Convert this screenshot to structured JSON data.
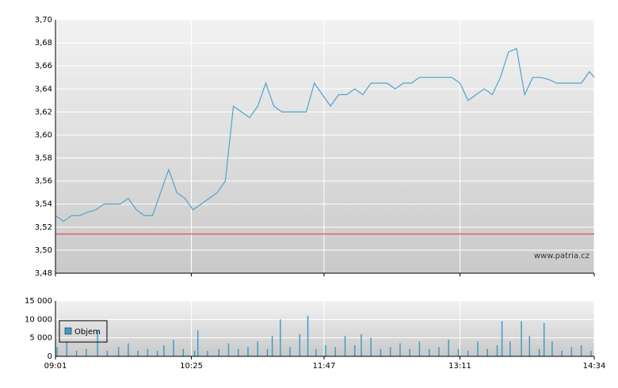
{
  "chart_data": [
    {
      "type": "line",
      "x": [
        "09:01",
        "09:06",
        "09:11",
        "09:16",
        "09:21",
        "09:26",
        "09:31",
        "09:36",
        "09:41",
        "09:46",
        "09:51",
        "09:56",
        "10:01",
        "10:06",
        "10:11",
        "10:16",
        "10:21",
        "10:26",
        "10:31",
        "10:36",
        "10:41",
        "10:46",
        "10:51",
        "10:56",
        "11:01",
        "11:06",
        "11:11",
        "11:16",
        "11:21",
        "11:26",
        "11:31",
        "11:36",
        "11:41",
        "11:46",
        "11:51",
        "11:56",
        "12:01",
        "12:06",
        "12:11",
        "12:16",
        "12:21",
        "12:26",
        "12:31",
        "12:36",
        "12:41",
        "12:46",
        "12:51",
        "12:56",
        "13:01",
        "13:06",
        "13:11",
        "13:16",
        "13:21",
        "13:26",
        "13:31",
        "13:36",
        "13:41",
        "13:46",
        "13:51",
        "13:56",
        "14:01",
        "14:06",
        "14:11",
        "14:16",
        "14:21",
        "14:26",
        "14:31",
        "14:34"
      ],
      "series": [
        {
          "color": "#4aa6cc",
          "values": [
            3.53,
            3.525,
            3.53,
            3.53,
            3.533,
            3.535,
            3.54,
            3.54,
            3.54,
            3.545,
            3.535,
            3.53,
            3.53,
            3.55,
            3.57,
            3.55,
            3.545,
            3.535,
            3.54,
            3.545,
            3.55,
            3.56,
            3.625,
            3.62,
            3.615,
            3.625,
            3.645,
            3.625,
            3.62,
            3.62,
            3.62,
            3.62,
            3.645,
            3.635,
            3.625,
            3.635,
            3.635,
            3.64,
            3.635,
            3.645,
            3.645,
            3.645,
            3.64,
            3.645,
            3.645,
            3.65,
            3.65,
            3.65,
            3.65,
            3.65,
            3.645,
            3.63,
            3.635,
            3.64,
            3.635,
            3.65,
            3.672,
            3.675,
            3.635,
            3.65,
            3.65,
            3.648,
            3.645,
            3.645,
            3.645,
            3.645,
            3.655,
            3.65
          ]
        }
      ],
      "reference_line": {
        "value": 3.514,
        "color": "#e06060"
      },
      "annotation": "www.patria.cz",
      "xlim": [
        "09:01",
        "14:34"
      ],
      "xticks": [
        "09:01",
        "10:25",
        "11:47",
        "13:11",
        "14:34"
      ],
      "ylim": [
        3.48,
        3.7
      ],
      "yticks": [
        {
          "value": 3.48,
          "label": "3,48"
        },
        {
          "value": 3.5,
          "label": "3,50"
        },
        {
          "value": 3.52,
          "label": "3,52"
        },
        {
          "value": 3.54,
          "label": "3,54"
        },
        {
          "value": 3.56,
          "label": "3,56"
        },
        {
          "value": 3.58,
          "label": "3,58"
        },
        {
          "value": 3.6,
          "label": "3,60"
        },
        {
          "value": 3.62,
          "label": "3,62"
        },
        {
          "value": 3.64,
          "label": "3,64"
        },
        {
          "value": 3.66,
          "label": "3,66"
        },
        {
          "value": 3.68,
          "label": "3,68"
        },
        {
          "value": 3.7,
          "label": "3,70"
        }
      ],
      "grid": true
    },
    {
      "type": "bar",
      "x": [
        "09:02",
        "09:08",
        "09:14",
        "09:20",
        "09:27",
        "09:33",
        "09:40",
        "09:46",
        "09:52",
        "09:58",
        "10:04",
        "10:08",
        "10:14",
        "10:20",
        "10:27",
        "10:29",
        "10:35",
        "10:42",
        "10:48",
        "10:54",
        "11:00",
        "11:06",
        "11:12",
        "11:15",
        "11:20",
        "11:26",
        "11:32",
        "11:37",
        "11:42",
        "11:48",
        "11:54",
        "12:00",
        "12:06",
        "12:10",
        "12:16",
        "12:22",
        "12:28",
        "12:34",
        "12:40",
        "12:46",
        "12:52",
        "12:58",
        "13:04",
        "13:10",
        "13:16",
        "13:22",
        "13:28",
        "13:34",
        "13:37",
        "13:42",
        "13:49",
        "13:54",
        "14:00",
        "14:03",
        "14:08",
        "14:14",
        "14:20",
        "14:26",
        "14:32"
      ],
      "series": [
        {
          "name": "Objem",
          "color": "#3a9fc8",
          "values": [
            2500,
            4000,
            1500,
            2000,
            7000,
            1500,
            2500,
            3500,
            1500,
            2000,
            1500,
            3000,
            4500,
            2000,
            1500,
            7000,
            1500,
            2000,
            3500,
            2000,
            2500,
            4000,
            2000,
            5500,
            10000,
            2500,
            6000,
            11000,
            2000,
            3000,
            2500,
            5500,
            3000,
            6000,
            5000,
            2000,
            2500,
            3500,
            2000,
            4000,
            2000,
            2500,
            4500,
            2000,
            1500,
            4000,
            2000,
            3000,
            9500,
            4000,
            9500,
            5500,
            2000,
            9000,
            4000,
            1500,
            2500,
            3000,
            1500
          ]
        }
      ],
      "xlim": [
        "09:01",
        "14:34"
      ],
      "xticks": [
        "09:01",
        "10:25",
        "11:47",
        "13:11",
        "14:34"
      ],
      "ylim": [
        0,
        15000
      ],
      "yticks": [
        0,
        {
          "value": 5000,
          "label": "5 000"
        },
        {
          "value": 10000,
          "label": "10 000"
        },
        {
          "value": 15000,
          "label": "15 000"
        }
      ],
      "grid": true
    }
  ]
}
